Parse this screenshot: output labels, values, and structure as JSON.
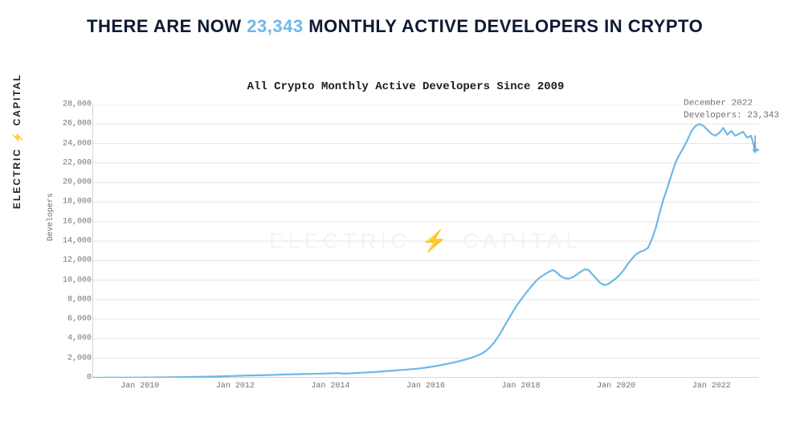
{
  "brand": {
    "left": "ELECTRIC",
    "right": "CAPITAL",
    "bolt": "⚡"
  },
  "header": {
    "pre": "THERE ARE NOW ",
    "highlight": "23,343",
    "post": " MONTHLY ACTIVE DEVELOPERS IN CRYPTO"
  },
  "watermark": "ELECTRIC ⚡ CAPITAL",
  "chart": {
    "type": "line",
    "title": "All Crypto Monthly Active Developers Since 2009",
    "title_fontsize": 14,
    "title_font": "Courier New",
    "ylabel": "Developers",
    "ylabel_fontsize": 10,
    "tick_fontsize": 10,
    "tick_font": "Courier New",
    "line_color": "#6fb8e8",
    "line_width": 2.2,
    "marker_color": "#6fb8e8",
    "marker_size": 3,
    "background_color": "#ffffff",
    "axis_color": "#a9a9a9",
    "grid_color": "#e5e5e5",
    "grid": true,
    "tick_color": "#707070",
    "x_domain_months": {
      "start": "2009-01",
      "end": "2023-01",
      "count": 169
    },
    "ylim": [
      0,
      28000
    ],
    "ytick_step": 2000,
    "yticks": [
      0,
      2000,
      4000,
      6000,
      8000,
      10000,
      12000,
      14000,
      16000,
      18000,
      20000,
      22000,
      24000,
      26000,
      28000
    ],
    "ytick_labels": [
      "0",
      "2,000",
      "4,000",
      "6,000",
      "8,000",
      "10,000",
      "12,000",
      "14,000",
      "16,000",
      "18,000",
      "20,000",
      "22,000",
      "24,000",
      "26,000",
      "28,000"
    ],
    "xtick_month_indices": [
      12,
      36,
      60,
      84,
      108,
      132,
      156
    ],
    "xtick_labels": [
      "Jan 2010",
      "Jan 2012",
      "Jan 2014",
      "Jan 2016",
      "Jan 2018",
      "Jan 2020",
      "Jan 2022"
    ],
    "values": [
      5,
      6,
      7,
      8,
      9,
      10,
      12,
      14,
      16,
      18,
      20,
      22,
      25,
      28,
      32,
      36,
      40,
      44,
      48,
      53,
      58,
      63,
      68,
      74,
      80,
      87,
      94,
      101,
      109,
      118,
      127,
      136,
      146,
      156,
      167,
      179,
      191,
      204,
      218,
      230,
      238,
      248,
      258,
      268,
      279,
      290,
      302,
      315,
      328,
      341,
      352,
      362,
      372,
      382,
      392,
      398,
      406,
      416,
      428,
      441,
      454,
      468,
      483,
      426,
      430,
      450,
      475,
      500,
      520,
      540,
      565,
      590,
      620,
      650,
      680,
      710,
      740,
      770,
      800,
      830,
      865,
      900,
      940,
      985,
      1040,
      1100,
      1165,
      1235,
      1310,
      1390,
      1475,
      1565,
      1660,
      1760,
      1870,
      1990,
      2120,
      2270,
      2450,
      2700,
      3050,
      3500,
      4050,
      4700,
      5400,
      6100,
      6800,
      7450,
      8000,
      8550,
      9050,
      9550,
      10000,
      10350,
      10600,
      10850,
      11050,
      10800,
      10400,
      10200,
      10150,
      10300,
      10550,
      10850,
      11100,
      11050,
      10600,
      10150,
      9700,
      9500,
      9600,
      9900,
      10200,
      10600,
      11100,
      11700,
      12200,
      12650,
      12900,
      13050,
      13300,
      14200,
      15400,
      17000,
      18400,
      19600,
      20900,
      22100,
      22900,
      23600,
      24400,
      25300,
      25800,
      26000,
      25800,
      25400,
      25000,
      24800,
      25100,
      25600,
      24900,
      25300,
      24800,
      25000,
      25200,
      24600,
      24800,
      23343,
      23343
    ],
    "annotation": {
      "line1": "December 2022",
      "line2": "Developers: 23,343",
      "month_index": 167,
      "value": 23343
    }
  }
}
